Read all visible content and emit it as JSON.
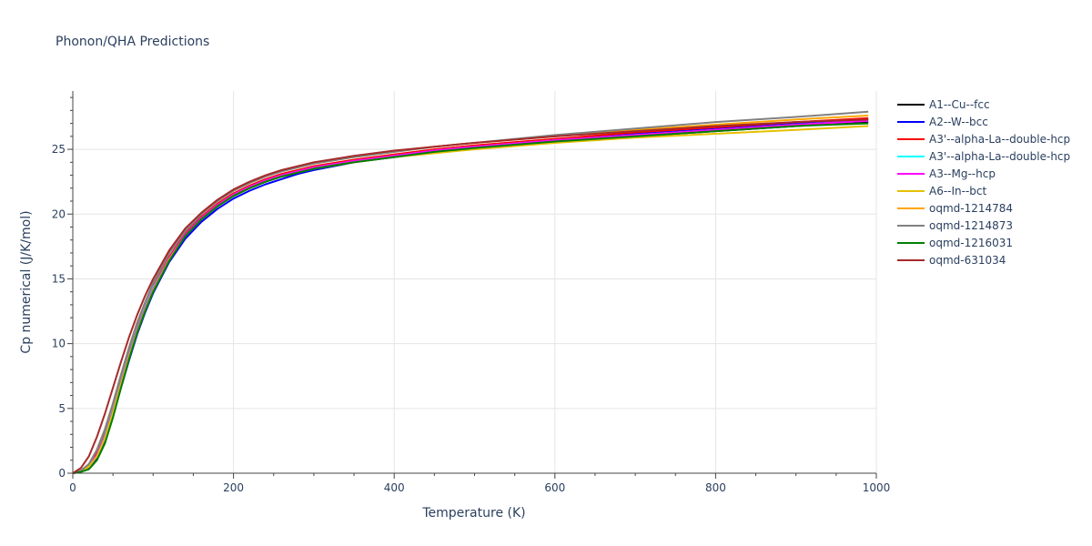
{
  "chart_data": {
    "type": "line",
    "title": "Phonon/QHA Predictions",
    "xlabel": "Temperature (K)",
    "ylabel": "Cp numerical (J/K/mol)",
    "xlim": [
      0,
      1000
    ],
    "ylim": [
      0,
      29.5
    ],
    "x_ticks": [
      "0",
      "200",
      "400",
      "600",
      "800",
      "1000"
    ],
    "y_ticks": [
      "0",
      "5",
      "10",
      "15",
      "20",
      "25"
    ],
    "grid": true,
    "legend_position": "right",
    "x": [
      0,
      10,
      20,
      30,
      40,
      50,
      60,
      70,
      80,
      90,
      100,
      120,
      140,
      160,
      180,
      200,
      220,
      240,
      260,
      280,
      300,
      350,
      400,
      450,
      500,
      600,
      700,
      800,
      900,
      990
    ],
    "series": [
      {
        "name": "A1--Cu--fcc",
        "color": "#000000",
        "values": [
          0,
          0.1,
          0.4,
          1.2,
          2.6,
          4.6,
          6.8,
          8.9,
          10.9,
          12.6,
          14.1,
          16.5,
          18.3,
          19.6,
          20.6,
          21.4,
          22.0,
          22.5,
          22.9,
          23.2,
          23.5,
          24.0,
          24.4,
          24.8,
          25.1,
          25.6,
          26.0,
          26.4,
          26.8,
          27.1
        ]
      },
      {
        "name": "A2--W--bcc",
        "color": "#0000ff",
        "values": [
          0,
          0.1,
          0.4,
          1.1,
          2.4,
          4.4,
          6.6,
          8.7,
          10.7,
          12.4,
          13.9,
          16.3,
          18.1,
          19.4,
          20.4,
          21.2,
          21.8,
          22.3,
          22.7,
          23.1,
          23.4,
          24.0,
          24.4,
          24.8,
          25.1,
          25.7,
          26.2,
          26.6,
          27.0,
          27.3
        ]
      },
      {
        "name": "A3'--alpha-La--double-hcp",
        "color": "#ff0000",
        "values": [
          0,
          0.2,
          0.6,
          1.6,
          3.1,
          5.1,
          7.3,
          9.4,
          11.3,
          12.9,
          14.4,
          16.7,
          18.5,
          19.8,
          20.8,
          21.6,
          22.2,
          22.7,
          23.1,
          23.4,
          23.7,
          24.2,
          24.6,
          25.0,
          25.3,
          25.8,
          26.3,
          26.7,
          27.1,
          27.4
        ]
      },
      {
        "name": "A3'--alpha-La--double-hcp",
        "color": "#00ffff",
        "values": [
          0,
          0.2,
          0.5,
          1.4,
          2.9,
          4.9,
          7.1,
          9.2,
          11.1,
          12.8,
          14.3,
          16.6,
          18.4,
          19.7,
          20.7,
          21.5,
          22.1,
          22.6,
          23.0,
          23.3,
          23.6,
          24.1,
          24.5,
          24.9,
          25.2,
          25.7,
          26.1,
          26.5,
          26.9,
          27.2
        ]
      },
      {
        "name": "A3--Mg--hcp",
        "color": "#ff00ff",
        "values": [
          0,
          0.2,
          0.5,
          1.4,
          2.8,
          4.8,
          7.0,
          9.1,
          11.0,
          12.7,
          14.2,
          16.6,
          18.4,
          19.7,
          20.7,
          21.5,
          22.1,
          22.6,
          23.0,
          23.3,
          23.6,
          24.1,
          24.5,
          24.9,
          25.2,
          25.7,
          26.1,
          26.5,
          26.9,
          27.2
        ]
      },
      {
        "name": "A6--In--bct",
        "color": "#e6c000",
        "values": [
          0,
          0.1,
          0.5,
          1.3,
          2.7,
          4.7,
          6.9,
          9.0,
          10.9,
          12.6,
          14.1,
          16.5,
          18.3,
          19.6,
          20.6,
          21.4,
          22.0,
          22.5,
          22.9,
          23.2,
          23.5,
          24.0,
          24.4,
          24.7,
          25.0,
          25.5,
          25.9,
          26.2,
          26.5,
          26.8
        ]
      },
      {
        "name": "oqmd-1214784",
        "color": "#ffa500",
        "values": [
          0,
          0.2,
          0.7,
          1.8,
          3.4,
          5.4,
          7.6,
          9.7,
          11.6,
          13.2,
          14.7,
          17.0,
          18.7,
          20.0,
          21.0,
          21.8,
          22.4,
          22.9,
          23.3,
          23.6,
          23.9,
          24.4,
          24.8,
          25.2,
          25.5,
          26.0,
          26.5,
          26.9,
          27.3,
          27.6
        ]
      },
      {
        "name": "oqmd-1214873",
        "color": "#808080",
        "values": [
          0,
          0.2,
          0.7,
          1.8,
          3.4,
          5.4,
          7.6,
          9.7,
          11.6,
          13.2,
          14.7,
          17.0,
          18.7,
          20.0,
          21.0,
          21.8,
          22.4,
          22.9,
          23.3,
          23.6,
          23.9,
          24.4,
          24.8,
          25.2,
          25.5,
          26.1,
          26.6,
          27.1,
          27.5,
          27.9
        ]
      },
      {
        "name": "oqmd-1216031",
        "color": "#008000",
        "values": [
          0,
          0.1,
          0.3,
          1.0,
          2.3,
          4.3,
          6.6,
          8.8,
          10.8,
          12.5,
          14.0,
          16.4,
          18.3,
          19.6,
          20.6,
          21.4,
          22.0,
          22.5,
          22.9,
          23.2,
          23.5,
          24.0,
          24.4,
          24.8,
          25.1,
          25.6,
          26.0,
          26.4,
          26.8,
          27.0
        ]
      },
      {
        "name": "oqmd-631034",
        "color": "#a52a2a",
        "values": [
          0,
          0.4,
          1.3,
          2.8,
          4.6,
          6.6,
          8.6,
          10.5,
          12.2,
          13.7,
          15.0,
          17.2,
          18.9,
          20.1,
          21.1,
          21.9,
          22.5,
          23.0,
          23.4,
          23.7,
          24.0,
          24.5,
          24.9,
          25.2,
          25.5,
          26.0,
          26.4,
          26.8,
          27.1,
          27.3
        ]
      }
    ]
  }
}
